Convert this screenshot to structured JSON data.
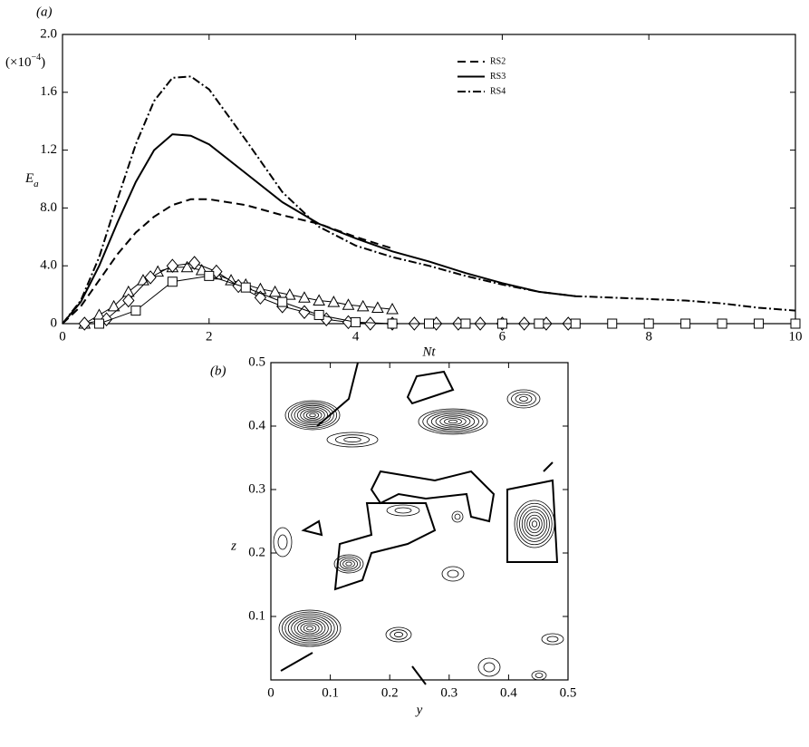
{
  "chart_data": [
    {
      "type": "line",
      "label": "(a)",
      "xlabel": "Nt",
      "ylabel": "E",
      "ylabel_sub": "a",
      "y_unit_prefix": "(×10",
      "y_unit_exponent": "−4",
      "y_unit_suffix": ")",
      "xlim": [
        0,
        10
      ],
      "xticks": [
        0,
        2,
        4,
        6,
        8,
        10
      ],
      "ylim": [
        0,
        20
      ],
      "yticks": [
        0,
        {
          "value": 4,
          "label": "4.0"
        },
        {
          "value": 8,
          "label": "8.0"
        },
        {
          "value": 12,
          "label": "1.2"
        },
        {
          "value": 16,
          "label": "1.6"
        },
        {
          "value": 20,
          "label": "2.0"
        }
      ],
      "legend": "top-right",
      "series": [
        {
          "name": "RS2",
          "color": "#000000",
          "dash": "dashed",
          "x": [
            0,
            0.25,
            0.5,
            0.75,
            1,
            1.25,
            1.5,
            1.75,
            2,
            2.5,
            3,
            3.5,
            4,
            4.5
          ],
          "values": [
            0,
            1.2,
            3,
            4.8,
            6.3,
            7.4,
            8.2,
            8.6,
            8.6,
            8.2,
            7.5,
            6.9,
            6,
            5.2
          ]
        },
        {
          "name": "RS3",
          "color": "#000000",
          "dash": "solid",
          "x": [
            0,
            0.25,
            0.5,
            0.75,
            1,
            1.25,
            1.5,
            1.75,
            2,
            2.5,
            3,
            3.5,
            4,
            4.5,
            5,
            5.5,
            6,
            6.5,
            7
          ],
          "values": [
            0,
            1.5,
            4,
            7,
            9.8,
            12,
            13.1,
            13,
            12.4,
            10.4,
            8.4,
            6.9,
            5.9,
            5,
            4.3,
            3.5,
            2.8,
            2.2,
            1.9
          ]
        },
        {
          "name": "RS4",
          "color": "#000000",
          "dash": "dashdot",
          "x": [
            0,
            0.25,
            0.5,
            0.75,
            1,
            1.25,
            1.5,
            1.75,
            2,
            2.5,
            3,
            3.5,
            4,
            4.5,
            5,
            5.5,
            6,
            6.5,
            7,
            7.5,
            8,
            8.5,
            9,
            9.5,
            10
          ],
          "values": [
            0,
            1.6,
            4.6,
            8.6,
            12.4,
            15.4,
            17,
            17.1,
            16.2,
            12.7,
            9.1,
            6.7,
            5.4,
            4.6,
            4,
            3.3,
            2.7,
            2.2,
            1.9,
            1.8,
            1.7,
            1.6,
            1.4,
            1.1,
            0.9
          ]
        },
        {
          "color": "#000000",
          "dash": "solid",
          "marker": "triangle",
          "x": [
            0.3,
            0.5,
            0.7,
            0.9,
            1.1,
            1.3,
            1.5,
            1.7,
            1.9,
            2.1,
            2.3,
            2.5,
            2.7,
            2.9,
            3.1,
            3.3,
            3.5,
            3.7,
            3.9,
            4.1,
            4.3,
            4.5
          ],
          "values": [
            0,
            0.6,
            1.2,
            2.2,
            3,
            3.6,
            3.9,
            3.9,
            3.7,
            3.4,
            3,
            2.7,
            2.4,
            2.2,
            2,
            1.8,
            1.6,
            1.5,
            1.3,
            1.2,
            1.1,
            1
          ]
        },
        {
          "color": "#000000",
          "dash": "solid",
          "marker": "diamond",
          "x": [
            0.3,
            0.6,
            0.9,
            1.2,
            1.5,
            1.8,
            2.1,
            2.4,
            2.7,
            3,
            3.3,
            3.6,
            3.9,
            4.2,
            4.5,
            4.8,
            5.1,
            5.4,
            5.7,
            6,
            6.3,
            6.6,
            6.9
          ],
          "values": [
            0,
            0.3,
            1.6,
            3.2,
            4,
            4.2,
            3.6,
            2.6,
            1.8,
            1.2,
            0.8,
            0.3,
            0.1,
            0,
            0,
            0,
            0,
            0,
            0,
            0,
            0,
            0,
            0
          ]
        },
        {
          "color": "#000000",
          "dash": "solid",
          "marker": "square",
          "x": [
            0.5,
            1,
            1.5,
            2,
            2.5,
            3,
            3.5,
            4,
            4.5,
            5,
            5.5,
            6,
            6.5,
            7,
            7.5,
            8,
            8.5,
            9,
            9.5,
            10
          ],
          "values": [
            0,
            0.9,
            2.9,
            3.3,
            2.5,
            1.5,
            0.6,
            0.1,
            0,
            0,
            0,
            0,
            0,
            0,
            0,
            0,
            0,
            0,
            0,
            0
          ]
        }
      ]
    },
    {
      "type": "contour",
      "label": "(b)",
      "xlabel": "y",
      "ylabel": "z",
      "xlim": [
        0,
        0.5
      ],
      "xticks": [
        0,
        0.1,
        0.2,
        0.3,
        0.4,
        0.5
      ],
      "ylim": [
        0,
        0.5
      ],
      "yticks": [
        0.1,
        0.2,
        0.3,
        0.4,
        0.5
      ]
    }
  ]
}
